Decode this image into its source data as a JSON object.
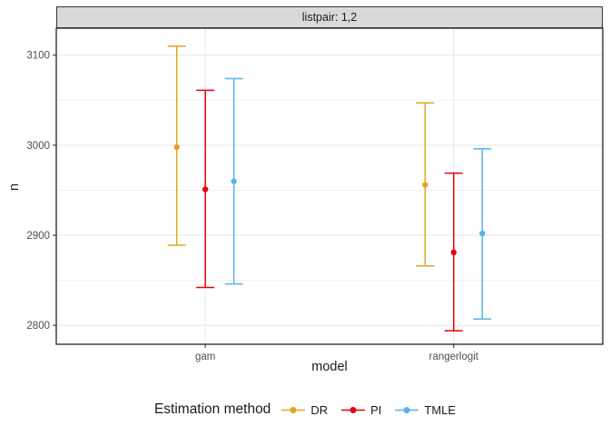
{
  "facet": {
    "label": "listpair: 1,2"
  },
  "axes": {
    "y_title": "n",
    "x_title": "model",
    "y_tick_labels": [
      "3100",
      "3000",
      "2900",
      "2800"
    ],
    "x_categories": [
      "gam",
      "rangerlogit"
    ]
  },
  "legend": {
    "title": "Estimation method",
    "entries": [
      {
        "label": "DR",
        "color": "#DFA520",
        "key_icon": "pointrange-key-icon"
      },
      {
        "label": "PI",
        "color": "#E8000B",
        "key_icon": "pointrange-key-icon"
      },
      {
        "label": "TMLE",
        "color": "#56B4E9",
        "key_icon": "pointrange-key-icon"
      }
    ]
  },
  "colors": {
    "strip_fill": "#D9D9D9",
    "panel_border": "#333333",
    "major_gridline": "#E5E5E5",
    "minor_gridline": "#F2F2F2",
    "tick_label": "#4D4D4D",
    "background": "#FFFFFF"
  },
  "chart_data": {
    "type": "pointrange",
    "facet_label": "listpair: 1,2",
    "xlabel": "model",
    "ylabel": "n",
    "categories": [
      "gam",
      "rangerlogit"
    ],
    "ylim": [
      2779,
      3130
    ],
    "y_major_ticks": [
      2800,
      2900,
      3000,
      3100
    ],
    "y_minor_gridlines": [
      2850,
      2950,
      3050
    ],
    "grid": "on",
    "legend_title": "Estimation method",
    "legend_position": "bottom",
    "series": [
      {
        "name": "DR",
        "color": "#DFA520",
        "points": [
          {
            "x": "gam",
            "y": 2998,
            "ymin": 2889,
            "ymax": 3110
          },
          {
            "x": "rangerlogit",
            "y": 2956,
            "ymin": 2866,
            "ymax": 3047
          }
        ]
      },
      {
        "name": "PI",
        "color": "#E8000B",
        "points": [
          {
            "x": "gam",
            "y": 2951,
            "ymin": 2842,
            "ymax": 3061
          },
          {
            "x": "rangerlogit",
            "y": 2881,
            "ymin": 2794,
            "ymax": 2969
          }
        ]
      },
      {
        "name": "TMLE",
        "color": "#56B4E9",
        "points": [
          {
            "x": "gam",
            "y": 2960,
            "ymin": 2846,
            "ymax": 3074
          },
          {
            "x": "rangerlogit",
            "y": 2902,
            "ymin": 2807,
            "ymax": 2996
          }
        ]
      }
    ]
  }
}
